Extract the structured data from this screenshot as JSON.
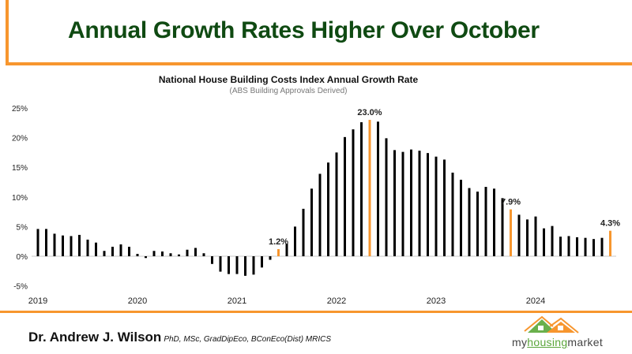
{
  "header": {
    "title": "Annual Growth Rates Higher Over October"
  },
  "footer": {
    "author": "Dr. Andrew J. Wilson",
    "qualifications": "PhD, MSc, GradDipEco, BConEco(Dist) MRICS",
    "logo": {
      "part1": "my",
      "part2": "housing",
      "part3": "market"
    }
  },
  "colors": {
    "frame": "#f7962e",
    "title": "#0f4a12",
    "bar": "#000000",
    "highlight": "#f7962e"
  },
  "chart_data": {
    "type": "bar",
    "title": "National House Building Costs Index Annual Growth Rate",
    "subtitle": "(ABS Building Approvals Derived)",
    "xlabel": "",
    "ylabel": "",
    "ylim": [
      -5,
      25
    ],
    "yticks": [
      "-5%",
      "0%",
      "5%",
      "10%",
      "15%",
      "20%",
      "25%"
    ],
    "ytick_values": [
      -5,
      0,
      5,
      10,
      15,
      20,
      25
    ],
    "xtick_labels": [
      "2019",
      "2020",
      "2021",
      "2022",
      "2023",
      "2024"
    ],
    "start": "2019-01",
    "frequency": "monthly",
    "end": "2024-10",
    "grid": false,
    "values": [
      4.6,
      4.6,
      3.8,
      3.5,
      3.4,
      3.6,
      2.8,
      2.3,
      0.9,
      1.6,
      2.0,
      1.6,
      0.4,
      -0.3,
      0.9,
      0.8,
      0.5,
      0.3,
      1.1,
      1.4,
      0.5,
      -1.3,
      -2.6,
      -3.0,
      -3.0,
      -3.3,
      -3.1,
      -1.9,
      -0.6,
      1.2,
      2.1,
      5.0,
      8.0,
      11.4,
      13.9,
      15.8,
      17.5,
      20.1,
      21.4,
      22.6,
      23.0,
      22.7,
      19.9,
      17.9,
      17.6,
      18.0,
      17.8,
      17.4,
      16.8,
      16.3,
      14.1,
      12.9,
      11.5,
      10.9,
      11.7,
      11.4,
      9.8,
      7.9,
      7.0,
      6.2,
      6.7,
      4.7,
      5.1,
      3.3,
      3.4,
      3.2,
      3.1,
      2.9,
      3.1,
      4.3
    ],
    "highlights": [
      {
        "month": "2021-06",
        "value": 1.2,
        "label": "1.2%"
      },
      {
        "month": "2022-05",
        "value": 23.0,
        "label": "23.0%"
      },
      {
        "month": "2023-10",
        "value": 7.9,
        "label": "7.9%"
      },
      {
        "month": "2024-10",
        "value": 4.3,
        "label": "4.3%"
      }
    ]
  }
}
